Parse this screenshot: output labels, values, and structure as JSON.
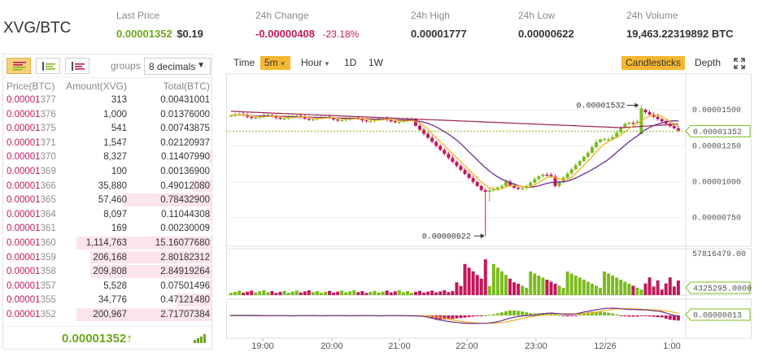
{
  "header": {
    "pair": "XVG/BTC",
    "last_price": {
      "label": "Last Price",
      "btc": "0.00001352",
      "usd": "$0.19"
    },
    "change": {
      "label": "24h Change",
      "value": "-0.00000408",
      "percent": "-23.18%"
    },
    "high": {
      "label": "24h High",
      "value": "0.00001777"
    },
    "low": {
      "label": "24h Low",
      "value": "0.00000622"
    },
    "volume": {
      "label": "24h Volume",
      "value": "19,463.22319892 BTC"
    }
  },
  "orderbook": {
    "groups_label": "groups",
    "decimals": "8 decimals",
    "columns": {
      "price": "Price(BTC)",
      "amount": "Amount(XVG)",
      "total": "Total(BTC)"
    },
    "rows": [
      {
        "price_a": "0.00001",
        "price_b": "377",
        "amount": "313",
        "total": "0.00431001",
        "depth": 0.0
      },
      {
        "price_a": "0.00001",
        "price_b": "376",
        "amount": "1,000",
        "total": "0.01376000",
        "depth": 0.0
      },
      {
        "price_a": "0.00001",
        "price_b": "375",
        "amount": "541",
        "total": "0.00743875",
        "depth": 0.0
      },
      {
        "price_a": "0.00001",
        "price_b": "371",
        "amount": "1,547",
        "total": "0.02120937",
        "depth": 0.0
      },
      {
        "price_a": "0.00001",
        "price_b": "370",
        "amount": "8,327",
        "total": "0.11407990",
        "depth": 0.02
      },
      {
        "price_a": "0.00001",
        "price_b": "369",
        "amount": "100",
        "total": "0.00136900",
        "depth": 0.0
      },
      {
        "price_a": "0.00001",
        "price_b": "366",
        "amount": "35,880",
        "total": "0.49012080",
        "depth": 0.14
      },
      {
        "price_a": "0.00001",
        "price_b": "365",
        "amount": "57,460",
        "total": "0.78432900",
        "depth": 0.65
      },
      {
        "price_a": "0.00001",
        "price_b": "364",
        "amount": "8,097",
        "total": "0.11044308",
        "depth": 0.03
      },
      {
        "price_a": "0.00001",
        "price_b": "361",
        "amount": "169",
        "total": "0.00230009",
        "depth": 0.0
      },
      {
        "price_a": "0.00001",
        "price_b": "360",
        "amount": "1,114,763",
        "total": "15.16077680",
        "depth": 1.0
      },
      {
        "price_a": "0.00001",
        "price_b": "359",
        "amount": "206,168",
        "total": "2.80182312",
        "depth": 0.9
      },
      {
        "price_a": "0.00001",
        "price_b": "358",
        "amount": "209,808",
        "total": "2.84919264",
        "depth": 0.9
      },
      {
        "price_a": "0.00001",
        "price_b": "357",
        "amount": "5,528",
        "total": "0.07501496",
        "depth": 0.02
      },
      {
        "price_a": "0.00001",
        "price_b": "355",
        "amount": "34,776",
        "total": "0.47121480",
        "depth": 0.25
      },
      {
        "price_a": "0.00001",
        "price_b": "352",
        "amount": "200,967",
        "total": "2.71707384",
        "depth": 1.0
      }
    ],
    "last_price": "0.00001352",
    "arrow": "↑"
  },
  "toolbar": {
    "time": "Time",
    "interval": "5m",
    "hour": "Hour",
    "d1": "1D",
    "w1": "1W",
    "candlesticks": "Candlesticks",
    "depth": "Depth"
  },
  "chart_data": {
    "type": "candlestick",
    "price_ticks": [
      "0.00001500",
      "0.00001250",
      "0.00001000",
      "0.00000750"
    ],
    "price_tick_values": [
      1.5e-05,
      1.25e-05,
      1e-05,
      7.5e-06
    ],
    "current_price_tag": "0.00001352",
    "volume_max_label": "57816479.00",
    "volume_current_tag": "4325295.0000",
    "macd_tag": "0.00000013",
    "annotations": {
      "high": "0.00001532",
      "low": "0.00000622"
    },
    "time_labels": [
      "19:00",
      "20:00",
      "21:00",
      "22:00",
      "23:00",
      "12/26",
      "1:00"
    ]
  },
  "colors": {
    "up": "#7cbb1e",
    "down": "#c2185b",
    "ma_fast": "#f0b21b",
    "ma_slow": "#6a2c91",
    "ma_long": "#9c1f4a"
  }
}
